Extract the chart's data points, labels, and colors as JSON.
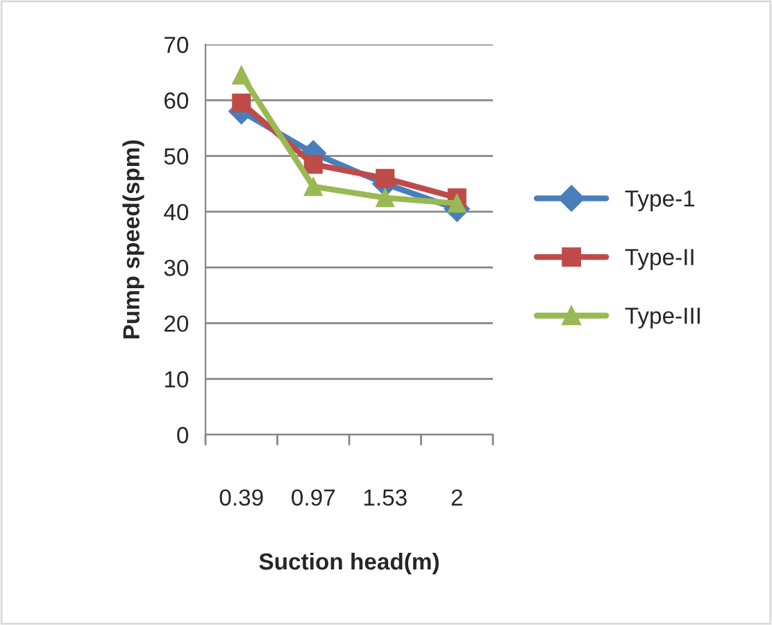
{
  "chart_data": {
    "type": "line",
    "xlabel": "Suction head(m)",
    "ylabel": "Pump speed(spm)",
    "categories": [
      "0.39",
      "0.97",
      "1.53",
      "2"
    ],
    "series": [
      {
        "name": "Type-1",
        "color": "#4a7ebb",
        "marker": "diamond",
        "values": [
          58,
          50.5,
          45,
          40.5
        ]
      },
      {
        "name": "Type-II",
        "color": "#be4b48",
        "marker": "square",
        "values": [
          59.5,
          48.5,
          46,
          42.5
        ]
      },
      {
        "name": "Type-III",
        "color": "#98b954",
        "marker": "triangle",
        "values": [
          64.5,
          44.5,
          42.5,
          41.5
        ]
      }
    ],
    "ylim": [
      0,
      70
    ],
    "yticks": [
      0,
      10,
      20,
      30,
      40,
      50,
      60,
      70
    ],
    "grid": "y",
    "legend": "right",
    "line_style": "solid"
  }
}
